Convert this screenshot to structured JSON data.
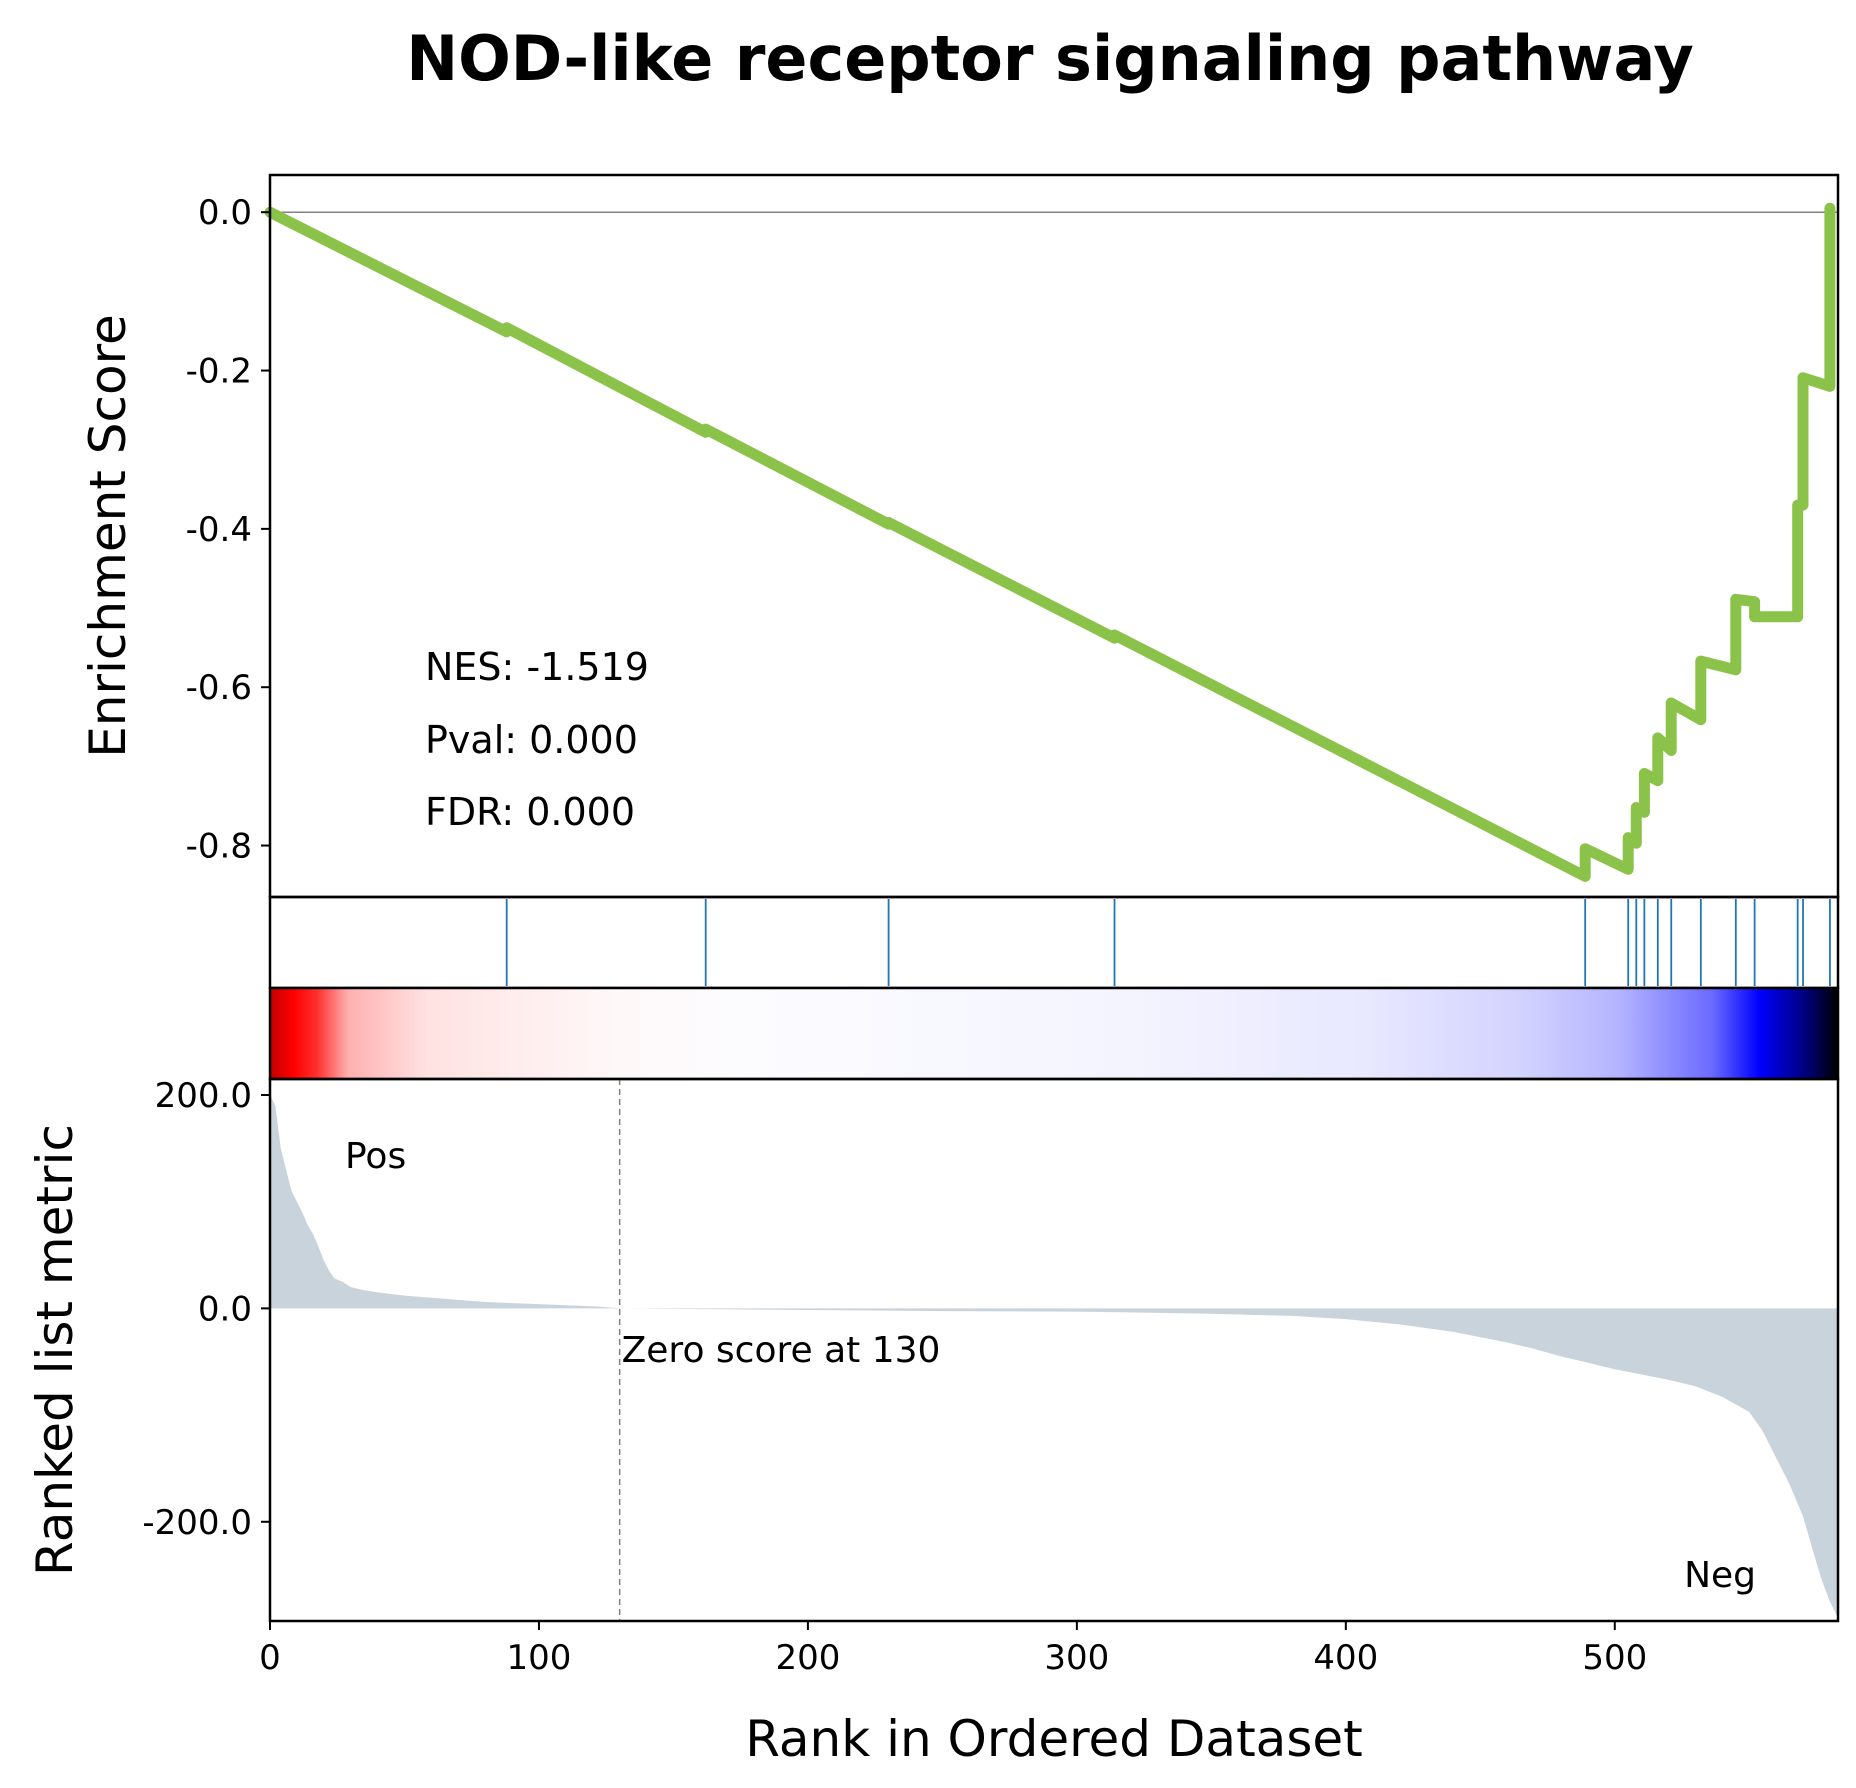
{
  "chart_data": {
    "type": "line",
    "title": "NOD-like receptor signaling pathway",
    "xlabel": "Rank in Ordered Dataset",
    "xlim": [
      0,
      583
    ],
    "x_ticks": [
      "0",
      "100",
      "200",
      "300",
      "400",
      "500"
    ],
    "x_tick_values": [
      0,
      100,
      200,
      300,
      400,
      500
    ],
    "grid": false,
    "panels": {
      "enrichment": {
        "ylabel": "Enrichment Score",
        "ylim": [
          -0.865,
          0.047
        ],
        "y_ticks": [
          "0.0",
          "-0.2",
          "-0.4",
          "-0.6",
          "-0.8"
        ],
        "y_tick_values": [
          0.0,
          -0.2,
          -0.4,
          -0.6,
          -0.8
        ],
        "line_color": "#8bc34a",
        "zero_line_color": "#808080",
        "series": [
          {
            "x": [
              0,
              88,
              88,
              162,
              162,
              230,
              230,
              314,
              314,
              489,
              489,
              505,
              505,
              508,
              508,
              511,
              511,
              516,
              516,
              521,
              521,
              532,
              532,
              545,
              545,
              552,
              552,
              568,
              568,
              570,
              570,
              580,
              580
            ],
            "y": [
              0.0,
              -0.151,
              -0.146,
              -0.278,
              -0.274,
              -0.394,
              -0.392,
              -0.538,
              -0.534,
              -0.839,
              -0.804,
              -0.83,
              -0.79,
              -0.797,
              -0.752,
              -0.758,
              -0.709,
              -0.718,
              -0.664,
              -0.68,
              -0.62,
              -0.641,
              -0.567,
              -0.578,
              -0.489,
              -0.492,
              -0.511,
              -0.511,
              -0.37,
              -0.37,
              -0.209,
              -0.22,
              0.005
            ]
          }
        ],
        "stats": {
          "nes": "NES: -1.519",
          "pval": "Pval: 0.000",
          "fdr": "FDR: 0.000"
        }
      },
      "hits": {
        "color": "#1f77b4",
        "positions": [
          88,
          162,
          230,
          314,
          489,
          505,
          508,
          511,
          516,
          521,
          532,
          545,
          552,
          568,
          570,
          580
        ]
      },
      "heatmap": {
        "colormap": "bwr",
        "colors": [
          "#000000",
          "#0000ff",
          "#ffffff",
          "#ff0000"
        ]
      },
      "ranked_metric": {
        "ylabel": "Ranked list metric",
        "ylim": [
          -293,
          215
        ],
        "y_ticks": [
          "200.0",
          "0.0",
          "-200.0"
        ],
        "y_tick_values": [
          200,
          0,
          -200
        ],
        "fill_color": "#c9d3db",
        "x": [
          0,
          2,
          4,
          6,
          8,
          10,
          12,
          14,
          16,
          18,
          20,
          22,
          24,
          27,
          30,
          35,
          40,
          50,
          60,
          70,
          80,
          90,
          100,
          110,
          120,
          130,
          150,
          200,
          250,
          300,
          350,
          380,
          400,
          420,
          440,
          460,
          470,
          480,
          490,
          500,
          510,
          520,
          530,
          540,
          550,
          555,
          560,
          565,
          570,
          574,
          577,
          580,
          583
        ],
        "y": [
          200,
          190,
          150,
          130,
          110,
          100,
          90,
          78,
          70,
          58,
          45,
          35,
          28,
          25,
          20,
          17,
          15,
          12,
          10,
          8,
          6,
          5,
          4,
          3,
          2,
          0.1,
          -0.5,
          -1.5,
          -2.5,
          -3,
          -5,
          -7,
          -10,
          -15,
          -22,
          -32,
          -38,
          -45,
          -51,
          -57,
          -62,
          -67,
          -73,
          -83,
          -97,
          -115,
          -140,
          -165,
          -195,
          -230,
          -255,
          -275,
          -290
        ],
        "labels": {
          "pos": "Pos",
          "neg": "Neg",
          "zero_score": "Zero score at 130"
        },
        "zero_score_rank": 130,
        "pos_color": "#ff0000",
        "neg_color": "#0000ff"
      }
    }
  }
}
